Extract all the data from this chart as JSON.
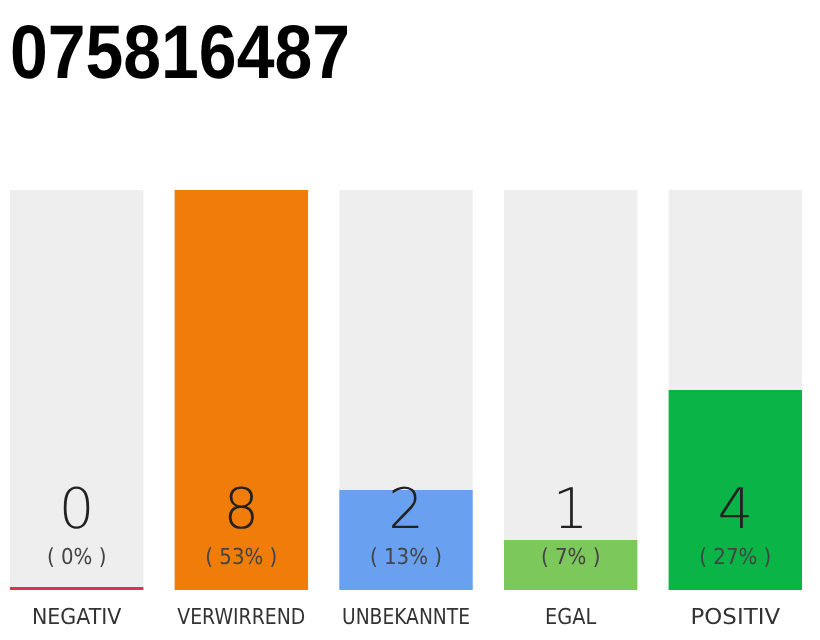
{
  "chart_data": {
    "type": "bar",
    "title": "075816487",
    "categories": [
      "NEGATIV",
      "VERWIRREND",
      "UNBEKANNTE",
      "EGAL",
      "POSITIV"
    ],
    "values": [
      0,
      8,
      2,
      1,
      4
    ],
    "colors": [
      "#e0304a",
      "#f07d0a",
      "#6aa0f0",
      "#7dc85a",
      "#0ab446"
    ],
    "data_labels": true,
    "annotations": [
      "( 0% )",
      "( 53% )",
      "( 13% )",
      "( 7% )",
      "( 27% )"
    ]
  }
}
